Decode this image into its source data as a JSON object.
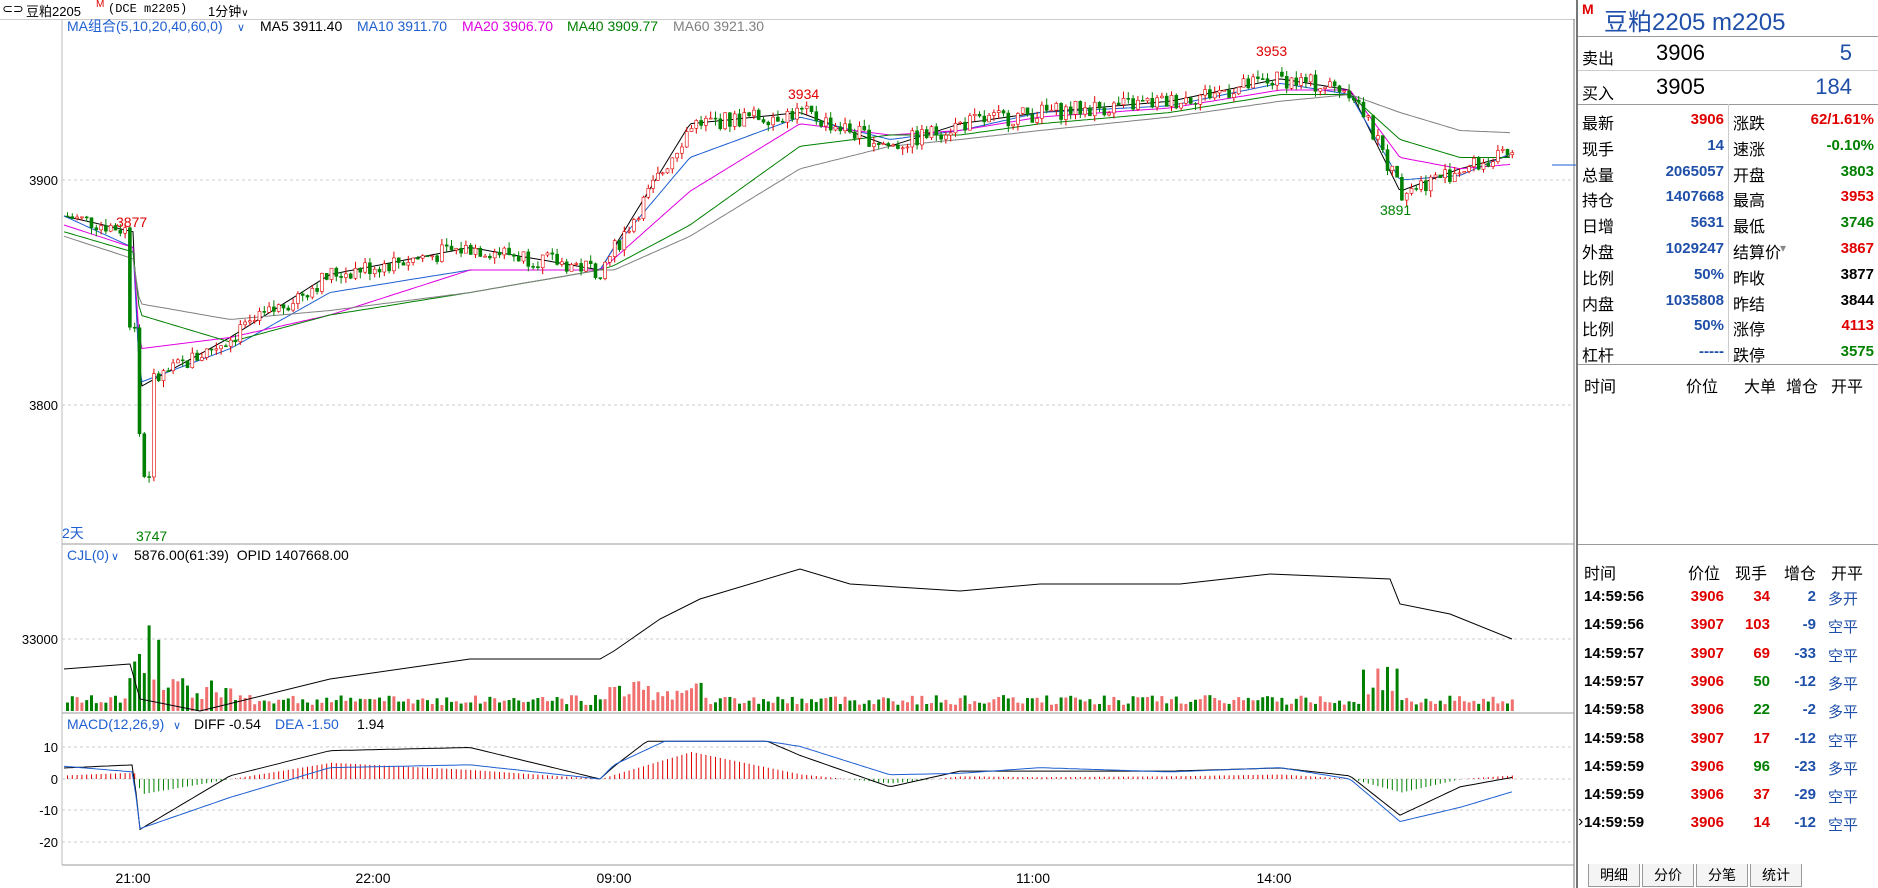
{
  "topbar": {
    "symbol": "豆粕2205",
    "flag": "M",
    "code": "(DCE m2205)",
    "period": "1分钟",
    "period_arrow": "∨"
  },
  "main_chart": {
    "indicator_title": "MA组合(5,10,20,40,60,0)",
    "ma_values": [
      {
        "label": "MA5 3911.40",
        "color": "#000000"
      },
      {
        "label": "MA10 3911.70",
        "color": "#1e5fd0"
      },
      {
        "label": "MA20 3906.70",
        "color": "#e000e0"
      },
      {
        "label": "MA40 3909.77",
        "color": "#008000"
      },
      {
        "label": "MA60 3921.30",
        "color": "#808080"
      }
    ],
    "price_axis": [
      "3900",
      "3800"
    ],
    "peak_labels": {
      "p3877": "3877",
      "p3934": "3934",
      "p3953": "3953",
      "p3891": "3891",
      "p3747": "3747"
    },
    "days_label": "2天"
  },
  "volume_chart": {
    "title": "CJL(0)",
    "values_text": "5876.00(61:39)  OPID 1407668.00",
    "axis_label": "33000"
  },
  "macd_chart": {
    "title": "MACD(12,26,9)",
    "diff": "DIFF -0.54",
    "dea": "DEA -1.50",
    "macd": "1.94",
    "axis": [
      "10",
      "0",
      "-10",
      "-20"
    ]
  },
  "time_axis": [
    "21:00",
    "22:00",
    "09:00",
    "11:00",
    "14:00"
  ],
  "panel": {
    "flag": "M",
    "title": "豆粕2205  m2205",
    "sell": {
      "label": "卖出",
      "price": "3906",
      "qty": "5"
    },
    "buy": {
      "label": "买入",
      "price": "3905",
      "qty": "184"
    },
    "stats": [
      {
        "l1": "最新",
        "v1": "3906",
        "c1": "red",
        "l2": "涨跌",
        "v2": "62/1.61%",
        "c2": "red"
      },
      {
        "l1": "现手",
        "v1": "14",
        "c1": "blue",
        "l2": "速涨",
        "v2": "-0.10%",
        "c2": "green"
      },
      {
        "l1": "总量",
        "v1": "2065057",
        "c1": "blue",
        "l2": "开盘",
        "v2": "3803",
        "c2": "green"
      },
      {
        "l1": "持仓",
        "v1": "1407668",
        "c1": "blue",
        "l2": "最高",
        "v2": "3953",
        "c2": "red"
      },
      {
        "l1": "日增",
        "v1": "5631",
        "c1": "blue",
        "l2": "最低",
        "v2": "3746",
        "c2": "green"
      },
      {
        "l1": "外盘",
        "v1": "1029247",
        "c1": "blue",
        "l2": "结算价",
        "v2": "3867",
        "c2": "red"
      },
      {
        "l1": "比例",
        "v1": "50%",
        "c1": "blue",
        "l2": "昨收",
        "v2": "3877",
        "c2": "black"
      },
      {
        "l1": "内盘",
        "v1": "1035808",
        "c1": "blue",
        "l2": "昨结",
        "v2": "3844",
        "c2": "black"
      },
      {
        "l1": "比例",
        "v1": "50%",
        "c1": "blue",
        "l2": "涨停",
        "v2": "4113",
        "c2": "red"
      },
      {
        "l1": "杠杆",
        "v1": "-----",
        "c1": "blue",
        "l2": "跌停",
        "v2": "3575",
        "c2": "green"
      }
    ],
    "big_header": [
      "时间",
      "价位",
      "大单",
      "增仓",
      "开平"
    ],
    "tick_header": [
      "时间",
      "价位",
      "现手",
      "增仓",
      "开平"
    ],
    "ticks": [
      {
        "time": "14:59:56",
        "price": "3906",
        "qty": "34",
        "qc": "red",
        "inc": "2",
        "type": "多开"
      },
      {
        "time": "14:59:56",
        "price": "3907",
        "qty": "103",
        "qc": "red",
        "inc": "-9",
        "type": "空平"
      },
      {
        "time": "14:59:57",
        "price": "3907",
        "qty": "69",
        "qc": "red",
        "inc": "-33",
        "type": "空平"
      },
      {
        "time": "14:59:57",
        "price": "3906",
        "qty": "50",
        "qc": "green",
        "inc": "-12",
        "type": "多平"
      },
      {
        "time": "14:59:58",
        "price": "3906",
        "qty": "22",
        "qc": "green",
        "inc": "-2",
        "type": "多平"
      },
      {
        "time": "14:59:58",
        "price": "3907",
        "qty": "17",
        "qc": "red",
        "inc": "-12",
        "type": "空平"
      },
      {
        "time": "14:59:59",
        "price": "3906",
        "qty": "96",
        "qc": "green",
        "inc": "-23",
        "type": "多平"
      },
      {
        "time": "14:59:59",
        "price": "3906",
        "qty": "37",
        "qc": "red",
        "inc": "-29",
        "type": "空平"
      },
      {
        "time": "14:59:59",
        "price": "3906",
        "qty": "14",
        "qc": "red",
        "inc": "-12",
        "type": "空平"
      }
    ],
    "tabs": [
      "明细",
      "分价",
      "分笔",
      "统计"
    ]
  },
  "chart_data": {
    "type": "line",
    "title": "豆粕2205 1分钟",
    "xlabel": "",
    "ylabel": "",
    "x_ticks": [
      "21:00",
      "22:00",
      "09:00",
      "11:00",
      "14:00"
    ],
    "ylim": [
      3740,
      3960
    ],
    "series": [
      {
        "name": "MA5",
        "values": [
          3884,
          3877,
          3808,
          3830,
          3858,
          3870,
          3860,
          3870,
          3925,
          3930,
          3915,
          3925,
          3930,
          3935,
          3945,
          3940,
          3895,
          3905,
          3911
        ]
      },
      {
        "name": "MA10",
        "values": [
          3884,
          3870,
          3810,
          3825,
          3850,
          3860,
          3860,
          3870,
          3910,
          3928,
          3918,
          3922,
          3930,
          3933,
          3943,
          3938,
          3900,
          3902,
          3912
        ]
      },
      {
        "name": "MA20",
        "values": [
          3880,
          3870,
          3825,
          3830,
          3840,
          3860,
          3860,
          3865,
          3895,
          3925,
          3920,
          3922,
          3928,
          3932,
          3940,
          3940,
          3910,
          3905,
          3907
        ]
      },
      {
        "name": "MA40",
        "values": [
          3877,
          3868,
          3840,
          3828,
          3840,
          3850,
          3860,
          3862,
          3880,
          3915,
          3920,
          3920,
          3925,
          3930,
          3938,
          3938,
          3918,
          3910,
          3910
        ]
      },
      {
        "name": "MA60",
        "values": [
          3875,
          3865,
          3845,
          3838,
          3842,
          3850,
          3860,
          3860,
          3875,
          3905,
          3915,
          3918,
          3922,
          3928,
          3935,
          3938,
          3930,
          3922,
          3921
        ]
      }
    ],
    "annotations": [
      "3877",
      "3934",
      "3953",
      "3891",
      "3747"
    ]
  }
}
